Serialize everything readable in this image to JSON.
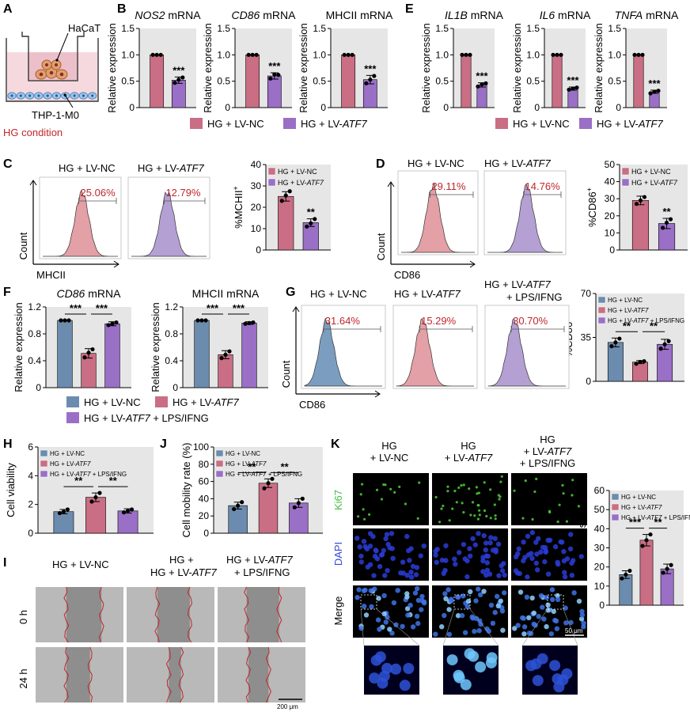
{
  "colors": {
    "nc": "#c96e84",
    "atf7": "#9a6fc6",
    "blue": "#6b8cae",
    "hist_nc": "#e3a0a6",
    "hist_atf7": "#b4a0d2",
    "hist_blue": "#7b9ec0",
    "panel_bg": "#e6e6e6",
    "red_text": "#c0262c"
  },
  "panel_letters": {
    "A": "A",
    "B": "B",
    "C": "C",
    "D": "D",
    "E": "E",
    "F": "F",
    "G": "G",
    "H": "H",
    "I": "I",
    "J": "J",
    "K": "K"
  },
  "panel_A": {
    "cell_top": "HaCaT",
    "cell_bottom": "THP-1-M0",
    "condition": "HG condition"
  },
  "legend": {
    "nc": "HG + LV-NC",
    "atf7_prefix": "HG + LV-",
    "atf7_gene": "ATF7",
    "lps_suffix": " + LPS/IFNG"
  },
  "sig": {
    "three": "***",
    "two": "**"
  },
  "ylabel_rel": "Relative expression",
  "flow": {
    "count": "Count",
    "x_mhcii": "MHCII",
    "x_cd86": "CD86",
    "C": {
      "nc_pct": "25.06%",
      "atf7_pct": "12.79%"
    },
    "D": {
      "nc_pct": "29.11%",
      "atf7_pct": "14.76%"
    },
    "G": {
      "nc_pct": "31.64%",
      "atf7_pct": "15.29%",
      "lps_pct": "30.70%"
    },
    "G_title_lps_line1": "HG + LV-ATF7",
    "G_title_lps_line2": "+ LPS/IFNG"
  },
  "scratch": {
    "row_0h": "0 h",
    "row_24h": "24 h",
    "col1": "HG + LV-NC",
    "col2_l1": "HG +",
    "col2_l2": "LV-ATF7",
    "col3_l1": "HG + LV-ATF7",
    "col3_l2": "+ LPS/IFNG",
    "scale": "200 μm"
  },
  "ki67": {
    "col1_l1": "HG",
    "col1_l2": "+ LV-NC",
    "col2_l1": "HG",
    "col2_l2": "+ LV-ATF7",
    "col3_l1": "HG",
    "col3_l2": "+ LV-ATF7",
    "col3_l3": "+ LPS/IFNG",
    "row_ki67": "Ki67",
    "row_dapi": "DAPI",
    "row_merge": "Merge",
    "scale": "50 μm"
  },
  "chart_data": [
    {
      "id": "B1",
      "type": "bar",
      "title": "NOS2 mRNA",
      "ylabel": "Relative expression",
      "categories": [
        "HG + LV-NC",
        "HG + LV-ATF7"
      ],
      "values": [
        1.0,
        0.52
      ],
      "errors": [
        0,
        0.06
      ],
      "points": [
        [
          1,
          1,
          1
        ],
        [
          0.47,
          0.53,
          0.57
        ]
      ],
      "ylim": [
        0,
        1.5
      ],
      "yticks": [
        0,
        0.5,
        1.0,
        1.5
      ],
      "significance": "***"
    },
    {
      "id": "B2",
      "type": "bar",
      "title": "CD86 mRNA",
      "ylabel": "Relative expression",
      "categories": [
        "HG + LV-NC",
        "HG + LV-ATF7"
      ],
      "values": [
        1.0,
        0.6
      ],
      "errors": [
        0,
        0.06
      ],
      "points": [
        [
          1,
          1,
          1
        ],
        [
          0.55,
          0.63,
          0.62
        ]
      ],
      "ylim": [
        0,
        1.5
      ],
      "yticks": [
        0,
        0.5,
        1.0,
        1.5
      ],
      "significance": "***"
    },
    {
      "id": "B3",
      "type": "bar",
      "title": "MHCII mRNA",
      "ylabel": "Relative expression",
      "categories": [
        "HG + LV-NC",
        "HG + LV-ATF7"
      ],
      "values": [
        1.0,
        0.53
      ],
      "errors": [
        0,
        0.08
      ],
      "points": [
        [
          1,
          1,
          1
        ],
        [
          0.46,
          0.53,
          0.6
        ]
      ],
      "ylim": [
        0,
        1.5
      ],
      "yticks": [
        0,
        0.5,
        1.0,
        1.5
      ],
      "significance": "***"
    },
    {
      "id": "E1",
      "type": "bar",
      "title": "IL1B mRNA",
      "ylabel": "Relative expression",
      "categories": [
        "HG + LV-NC",
        "HG + LV-ATF7"
      ],
      "values": [
        1.0,
        0.43
      ],
      "errors": [
        0,
        0.04
      ],
      "points": [
        [
          1,
          1,
          1
        ],
        [
          0.4,
          0.44,
          0.46
        ]
      ],
      "ylim": [
        0,
        1.5
      ],
      "yticks": [
        0,
        0.5,
        1.0,
        1.5
      ],
      "significance": "***"
    },
    {
      "id": "E2",
      "type": "bar",
      "title": "IL6 mRNA",
      "ylabel": "Relative expression",
      "categories": [
        "HG + LV-NC",
        "HG + LV-ATF7"
      ],
      "values": [
        1.0,
        0.36
      ],
      "errors": [
        0,
        0.03
      ],
      "points": [
        [
          1,
          1,
          1
        ],
        [
          0.34,
          0.36,
          0.38
        ]
      ],
      "ylim": [
        0,
        1.5
      ],
      "yticks": [
        0,
        0.5,
        1.0,
        1.5
      ],
      "significance": "***"
    },
    {
      "id": "E3",
      "type": "bar",
      "title": "TNFA mRNA",
      "ylabel": "Relative expression",
      "categories": [
        "HG + LV-NC",
        "HG + LV-ATF7"
      ],
      "values": [
        1.0,
        0.3
      ],
      "errors": [
        0,
        0.03
      ],
      "points": [
        [
          1,
          1,
          1
        ],
        [
          0.27,
          0.3,
          0.32
        ]
      ],
      "ylim": [
        0,
        1.5
      ],
      "yticks": [
        0,
        0.5,
        1.0,
        1.5
      ],
      "significance": "***"
    },
    {
      "id": "C",
      "type": "bar",
      "title": "",
      "ylabel": "%MCHII+",
      "categories": [
        "HG + LV-NC",
        "HG + LV-ATF7"
      ],
      "values": [
        25.1,
        12.8
      ],
      "errors": [
        2.2,
        1.8
      ],
      "points": [
        [
          23,
          25.5,
          27.5
        ],
        [
          11,
          12.5,
          14.5
        ]
      ],
      "ylim": [
        0,
        40
      ],
      "yticks": [
        0,
        10,
        20,
        30,
        40
      ],
      "significance": "**"
    },
    {
      "id": "D",
      "type": "bar",
      "title": "",
      "ylabel": "%CD86+",
      "categories": [
        "HG + LV-NC",
        "HG + LV-ATF7"
      ],
      "values": [
        29,
        15.5
      ],
      "errors": [
        2.5,
        3
      ],
      "points": [
        [
          27,
          29,
          31
        ],
        [
          13,
          16,
          18
        ]
      ],
      "ylim": [
        0,
        50
      ],
      "yticks": [
        0,
        10,
        20,
        30,
        40,
        50
      ],
      "significance": "**"
    },
    {
      "id": "F1",
      "type": "bar",
      "title": "CD86 mRNA",
      "ylabel": "Relative expression",
      "categories": [
        "HG + LV-NC",
        "HG + LV-ATF7",
        "HG + LV-ATF7 + LPS/IFNG"
      ],
      "values": [
        1.0,
        0.51,
        0.95
      ],
      "errors": [
        0,
        0.07,
        0.03
      ],
      "points": [
        [
          1,
          1,
          1
        ],
        [
          0.45,
          0.52,
          0.57
        ],
        [
          0.93,
          0.95,
          0.97
        ]
      ],
      "ylim": [
        0,
        1.2
      ],
      "yticks": [
        0,
        0.4,
        0.8,
        1.2
      ],
      "significance": [
        "***",
        "***"
      ]
    },
    {
      "id": "F2",
      "type": "bar",
      "title": "MHCII mRNA",
      "ylabel": "Relative expression",
      "categories": [
        "HG + LV-NC",
        "HG + LV-ATF7",
        "HG + LV-ATF7 + LPS/IFNG"
      ],
      "values": [
        1.0,
        0.49,
        0.96
      ],
      "errors": [
        0,
        0.06,
        0.02
      ],
      "points": [
        [
          1,
          1,
          1
        ],
        [
          0.44,
          0.49,
          0.54
        ],
        [
          0.95,
          0.96,
          0.97
        ]
      ],
      "ylim": [
        0,
        1.2
      ],
      "yticks": [
        0,
        0.4,
        0.8,
        1.2
      ],
      "significance": [
        "***",
        "***"
      ]
    },
    {
      "id": "G",
      "type": "bar",
      "title": "",
      "ylabel": "%CD86+",
      "categories": [
        "HG + LV-NC",
        "HG + LV-ATF7",
        "HG + LV-ATF7 + LPS/IFNG"
      ],
      "values": [
        31,
        15.3,
        29.5
      ],
      "errors": [
        3.5,
        1.2,
        4
      ],
      "points": [
        [
          28,
          31,
          34
        ],
        [
          14,
          15.5,
          16
        ],
        [
          26,
          29.5,
          32
        ]
      ],
      "ylim": [
        0,
        70
      ],
      "yticks": [
        0,
        35,
        70
      ],
      "significance": [
        "**",
        "**"
      ]
    },
    {
      "id": "H",
      "type": "bar",
      "title": "",
      "ylabel": "Cell viability",
      "categories": [
        "HG + LV-NC",
        "HG + LV-ATF7",
        "HG + LV-ATF7 + LPS/IFNG"
      ],
      "values": [
        1.5,
        2.5,
        1.55
      ],
      "errors": [
        0.15,
        0.3,
        0.15
      ],
      "points": [
        [
          1.4,
          1.5,
          1.65
        ],
        [
          2.2,
          2.5,
          2.8
        ],
        [
          1.45,
          1.55,
          1.65
        ]
      ],
      "ylim": [
        0,
        6
      ],
      "yticks": [
        0,
        2,
        4,
        6
      ],
      "significance": [
        "**",
        "**"
      ]
    },
    {
      "id": "J",
      "type": "bar",
      "title": "",
      "ylabel": "Cell mobility rate (%)",
      "categories": [
        "HG + LV-NC",
        "HG + LV-ATF7",
        "HG + LV-ATF7 + LPS/IFNG"
      ],
      "values": [
        32,
        58,
        35
      ],
      "errors": [
        4,
        5,
        5
      ],
      "points": [
        [
          28,
          32,
          36
        ],
        [
          52,
          58,
          63
        ],
        [
          30,
          35,
          40
        ]
      ],
      "ylim": [
        0,
        100
      ],
      "yticks": [
        0,
        20,
        40,
        60,
        80,
        100
      ],
      "significance": [
        "**",
        "**"
      ]
    },
    {
      "id": "K",
      "type": "bar",
      "title": "",
      "ylabel": "Ki67+ cells",
      "categories": [
        "HG + LV-NC",
        "HG + LV-ATF7",
        "HG + LV-ATF7 + LPS/IFNG"
      ],
      "values": [
        16,
        34,
        19
      ],
      "errors": [
        2,
        3,
        2.5
      ],
      "points": [
        [
          14,
          16,
          18
        ],
        [
          31,
          34,
          37
        ],
        [
          17,
          19,
          21
        ]
      ],
      "ylim": [
        0,
        60
      ],
      "yticks": [
        0,
        10,
        20,
        30,
        40,
        50,
        60
      ],
      "significance": [
        "***",
        "**"
      ]
    }
  ]
}
